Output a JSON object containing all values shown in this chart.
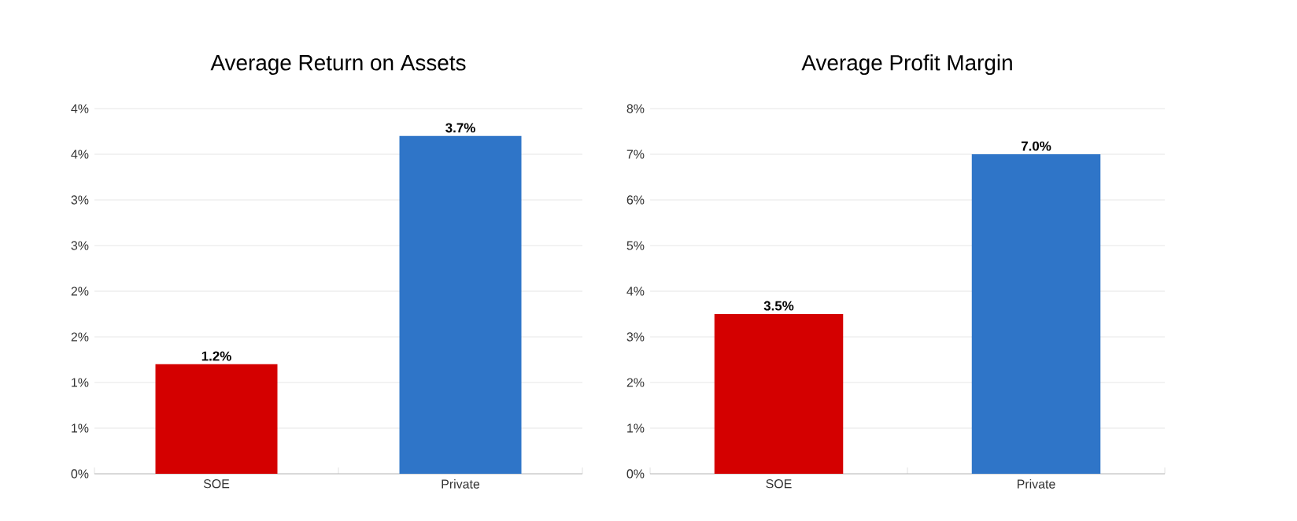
{
  "chart_data": [
    {
      "type": "bar",
      "title": "Average Return on Assets",
      "categories": [
        "SOE",
        "Private"
      ],
      "values": [
        1.2,
        3.7
      ],
      "colors": [
        "#d40000",
        "#2f75c8"
      ],
      "value_labels": [
        "1.2%",
        "3.7%"
      ],
      "ylim": [
        0,
        4
      ],
      "yticks": [
        {
          "value": 0,
          "label": "0%"
        },
        {
          "value": 0.5,
          "label": "1%"
        },
        {
          "value": 1,
          "label": "1%"
        },
        {
          "value": 1.5,
          "label": "2%"
        },
        {
          "value": 2,
          "label": "2%"
        },
        {
          "value": 2.5,
          "label": "3%"
        },
        {
          "value": 3,
          "label": "3%"
        },
        {
          "value": 3.5,
          "label": "4%"
        },
        {
          "value": 4,
          "label": "4%"
        }
      ],
      "grid": "y"
    },
    {
      "type": "bar",
      "title": "Average Profit Margin",
      "categories": [
        "SOE",
        "Private"
      ],
      "values": [
        3.5,
        7.0
      ],
      "colors": [
        "#d40000",
        "#2f75c8"
      ],
      "value_labels": [
        "3.5%",
        "7.0%"
      ],
      "ylim": [
        0,
        8
      ],
      "yticks": [
        {
          "value": 0,
          "label": "0%"
        },
        {
          "value": 1,
          "label": "1%"
        },
        {
          "value": 2,
          "label": "2%"
        },
        {
          "value": 3,
          "label": "3%"
        },
        {
          "value": 4,
          "label": "4%"
        },
        {
          "value": 5,
          "label": "5%"
        },
        {
          "value": 6,
          "label": "6%"
        },
        {
          "value": 7,
          "label": "7%"
        },
        {
          "value": 8,
          "label": "8%"
        }
      ],
      "grid": "y"
    }
  ]
}
